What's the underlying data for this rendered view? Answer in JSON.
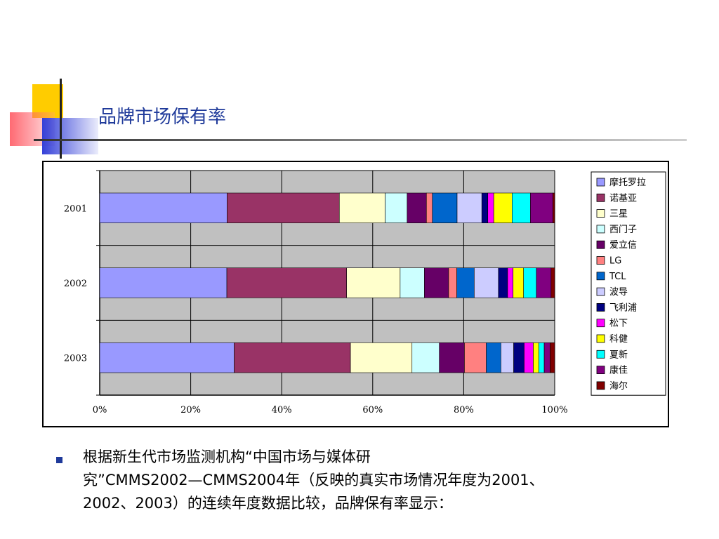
{
  "title": "品牌市场保有率",
  "body": {
    "line1": "根据新生代市场监测机构“中国市场与媒体研",
    "line2": "究”CMMS2002—CMMS2004年（反映的真实市场情况年度为2001、",
    "line3": "2002、2003）的连续年度数据比较，品牌保有率显示："
  },
  "chart_data": {
    "type": "bar",
    "stacked": "100%",
    "orientation": "horizontal",
    "categories": [
      "2001",
      "2002",
      "2003"
    ],
    "x_ticks": [
      "0%",
      "20%",
      "40%",
      "60%",
      "80%",
      "100%"
    ],
    "xlim": [
      0,
      100
    ],
    "grid": true,
    "legend_position": "right",
    "series": [
      {
        "name": "摩托罗拉",
        "color": "#9999ff",
        "values": [
          27.8,
          27.8,
          29.5
        ]
      },
      {
        "name": "诺基亚",
        "color": "#993366",
        "values": [
          24.5,
          26.2,
          25.5
        ]
      },
      {
        "name": "三星",
        "color": "#ffffcc",
        "values": [
          10.0,
          11.7,
          13.5
        ]
      },
      {
        "name": "西门子",
        "color": "#ccffff",
        "values": [
          4.8,
          5.3,
          6.0
        ]
      },
      {
        "name": "爱立信",
        "color": "#660066",
        "values": [
          4.2,
          5.3,
          5.5
        ]
      },
      {
        "name": "LG",
        "color": "#ff8080",
        "values": [
          1.3,
          1.8,
          4.8
        ]
      },
      {
        "name": "TCL",
        "color": "#0066cc",
        "values": [
          5.4,
          3.8,
          3.2
        ]
      },
      {
        "name": "波导",
        "color": "#ccccff",
        "values": [
          5.4,
          5.3,
          2.8
        ]
      },
      {
        "name": "飞利浦",
        "color": "#000080",
        "values": [
          1.3,
          2.0,
          2.3
        ]
      },
      {
        "name": "松下",
        "color": "#ff00ff",
        "values": [
          1.3,
          1.2,
          2.0
        ]
      },
      {
        "name": "科健",
        "color": "#ffff00",
        "values": [
          4.0,
          2.3,
          1.2
        ]
      },
      {
        "name": "夏新",
        "color": "#00ffff",
        "values": [
          4.0,
          2.8,
          1.2
        ]
      },
      {
        "name": "康佳",
        "color": "#800080",
        "values": [
          4.9,
          3.2,
          1.3
        ]
      },
      {
        "name": "海尔",
        "color": "#800000",
        "values": [
          0.4,
          0.8,
          1.0
        ]
      }
    ]
  }
}
